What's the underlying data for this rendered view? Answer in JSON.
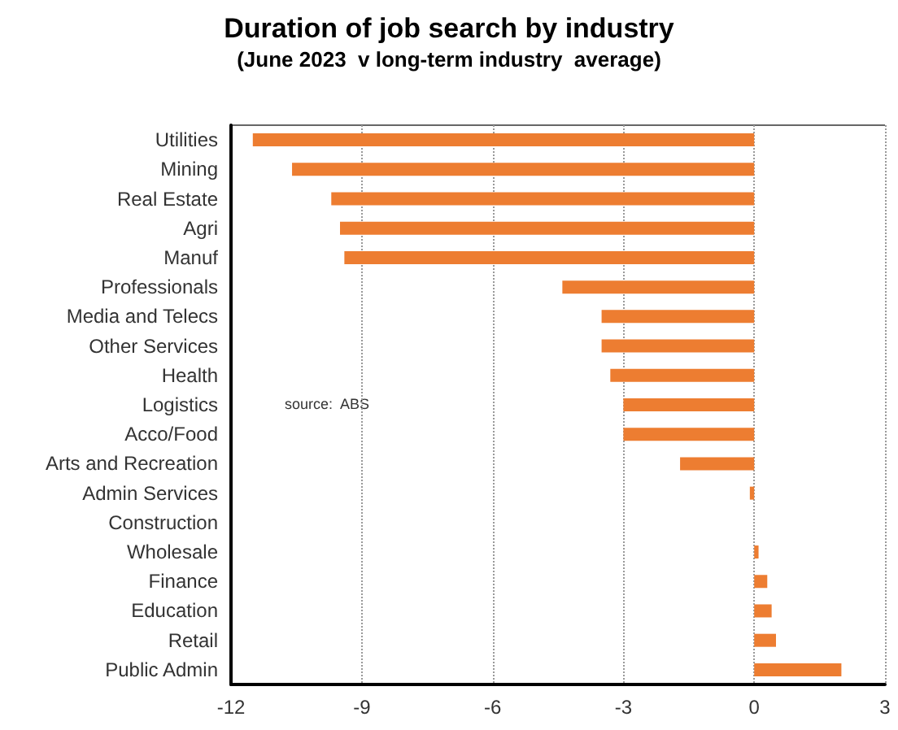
{
  "chart_data": {
    "type": "bar",
    "orientation": "horizontal",
    "title": "Duration of job search by industry",
    "subtitle": "(June 2023  v long-term industry  average)",
    "categories": [
      "Utilities",
      "Mining",
      "Real Estate",
      "Agri",
      "Manuf",
      "Professionals",
      "Media and Telecs",
      "Other Services",
      "Health",
      "Logistics",
      "Acco/Food",
      "Arts and Recreation",
      "Admin Services",
      "Construction",
      "Wholesale",
      "Finance",
      "Education",
      "Retail",
      "Public Admin"
    ],
    "values": [
      -11.5,
      -10.6,
      -9.7,
      -9.5,
      -9.4,
      -4.4,
      -3.5,
      -3.5,
      -3.3,
      -3.0,
      -3.0,
      -1.7,
      -0.1,
      0,
      0.1,
      0.3,
      0.4,
      0.5,
      2.0
    ],
    "color": "#ed7d31",
    "xlim": [
      -12,
      3
    ],
    "xticks": [
      -12,
      -9,
      -6,
      -3,
      0,
      3
    ],
    "grid": "x",
    "annotations": [
      "source:  ABS"
    ]
  }
}
